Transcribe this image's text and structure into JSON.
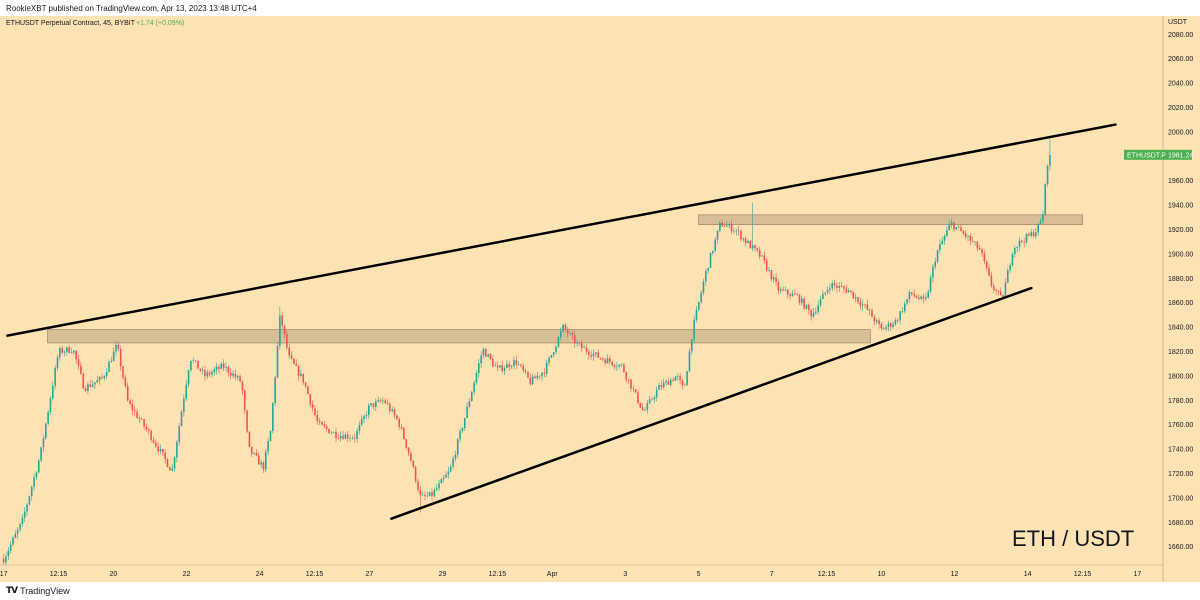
{
  "header": {
    "published": "RookieXBT published on TradingView.com, Apr 13, 2023 13:48 UTC+4"
  },
  "legend": {
    "symbol": "ETHUSDT Perpetual Contract, 45, BYBIT",
    "change": "+1.74 (+0.09%)"
  },
  "footer": {
    "brand": "TradingView"
  },
  "colors": {
    "background": "#fde3b4",
    "up": "#26a69a",
    "down": "#ef5350",
    "price_tag": "#4caf50",
    "zone_fill": "#c9b18a",
    "trendline": "#000000"
  },
  "chart_data": {
    "type": "candlestick",
    "title": "ETH / USDT",
    "ylabel": "USDT",
    "ylim": [
      1645,
      2095
    ],
    "yticks": [
      1660,
      1680,
      1700,
      1720,
      1740,
      1760,
      1780,
      1800,
      1820,
      1840,
      1860,
      1880,
      1900,
      1920,
      1940,
      1960,
      2000,
      2020,
      2040,
      2060,
      2080
    ],
    "last_price": {
      "label": "ETHUSDT.P",
      "value": "1981.24",
      "price": 1981.24
    },
    "xticks": [
      {
        "label": "17",
        "x": 0
      },
      {
        "label": "12:15",
        "x": 0.75
      },
      {
        "label": "20",
        "x": 1.5
      },
      {
        "label": "22",
        "x": 2.5
      },
      {
        "label": "24",
        "x": 3.5
      },
      {
        "label": "12:15",
        "x": 4.25
      },
      {
        "label": "27",
        "x": 5
      },
      {
        "label": "29",
        "x": 6
      },
      {
        "label": "12:15",
        "x": 6.75
      },
      {
        "label": "Apr",
        "x": 7.5
      },
      {
        "label": "3",
        "x": 8.5
      },
      {
        "label": "5",
        "x": 9.5
      },
      {
        "label": "7",
        "x": 10.5
      },
      {
        "label": "12:15",
        "x": 11.25
      },
      {
        "label": "10",
        "x": 12
      },
      {
        "label": "12",
        "x": 13
      },
      {
        "label": "14",
        "x": 14
      },
      {
        "label": "12:15",
        "x": 14.75
      },
      {
        "label": "17",
        "x": 15.5
      }
    ],
    "xlim": [
      -0.05,
      15.85
    ],
    "zones": [
      {
        "x0": 0.6,
        "x1": 11.85,
        "y0": 1827,
        "y1": 1838
      },
      {
        "x0": 9.5,
        "x1": 14.75,
        "y0": 1924,
        "y1": 1932
      }
    ],
    "trendlines": [
      {
        "x0": 0.05,
        "p0": 1833,
        "x1": 15.2,
        "p1": 2006
      },
      {
        "x0": 5.3,
        "p0": 1683,
        "x1": 14.05,
        "p1": 1872
      }
    ],
    "path_points": [
      [
        0.0,
        1650
      ],
      [
        0.25,
        1680
      ],
      [
        0.5,
        1735
      ],
      [
        0.75,
        1820
      ],
      [
        0.95,
        1822
      ],
      [
        1.1,
        1790
      ],
      [
        1.35,
        1798
      ],
      [
        1.55,
        1825
      ],
      [
        1.7,
        1778
      ],
      [
        2.0,
        1752
      ],
      [
        2.3,
        1722
      ],
      [
        2.55,
        1815
      ],
      [
        2.75,
        1800
      ],
      [
        3.0,
        1808
      ],
      [
        3.25,
        1795
      ],
      [
        3.35,
        1740
      ],
      [
        3.55,
        1725
      ],
      [
        3.65,
        1755
      ],
      [
        3.78,
        1850
      ],
      [
        3.9,
        1815
      ],
      [
        4.1,
        1796
      ],
      [
        4.3,
        1760
      ],
      [
        4.55,
        1752
      ],
      [
        4.8,
        1750
      ],
      [
        5.0,
        1775
      ],
      [
        5.2,
        1780
      ],
      [
        5.4,
        1762
      ],
      [
        5.55,
        1735
      ],
      [
        5.7,
        1700
      ],
      [
        5.85,
        1702
      ],
      [
        6.1,
        1722
      ],
      [
        6.3,
        1765
      ],
      [
        6.55,
        1822
      ],
      [
        6.75,
        1805
      ],
      [
        7.0,
        1812
      ],
      [
        7.2,
        1795
      ],
      [
        7.4,
        1805
      ],
      [
        7.65,
        1840
      ],
      [
        7.85,
        1825
      ],
      [
        8.15,
        1815
      ],
      [
        8.45,
        1808
      ],
      [
        8.75,
        1770
      ],
      [
        8.95,
        1790
      ],
      [
        9.2,
        1800
      ],
      [
        9.3,
        1788
      ],
      [
        9.42,
        1838
      ],
      [
        9.6,
        1885
      ],
      [
        9.8,
        1925
      ],
      [
        10.0,
        1920
      ],
      [
        10.15,
        1910
      ],
      [
        10.35,
        1898
      ],
      [
        10.6,
        1870
      ],
      [
        10.85,
        1865
      ],
      [
        11.05,
        1850
      ],
      [
        11.3,
        1875
      ],
      [
        11.55,
        1870
      ],
      [
        11.8,
        1855
      ],
      [
        12.0,
        1838
      ],
      [
        12.2,
        1845
      ],
      [
        12.4,
        1868
      ],
      [
        12.6,
        1860
      ],
      [
        12.75,
        1900
      ],
      [
        12.95,
        1925
      ],
      [
        13.15,
        1915
      ],
      [
        13.35,
        1903
      ],
      [
        13.5,
        1875
      ],
      [
        13.65,
        1862
      ],
      [
        13.8,
        1905
      ],
      [
        13.95,
        1912
      ],
      [
        14.1,
        1918
      ],
      [
        14.2,
        1928
      ],
      [
        14.27,
        1975
      ],
      [
        14.32,
        1981
      ]
    ],
    "notable_extremes": [
      {
        "x": 3.78,
        "price": 1857
      },
      {
        "x": 10.25,
        "price": 1942
      },
      {
        "x": 14.3,
        "price": 1994
      },
      {
        "x": 5.7,
        "price": 1688
      },
      {
        "x": 0.02,
        "price": 1648
      }
    ]
  }
}
